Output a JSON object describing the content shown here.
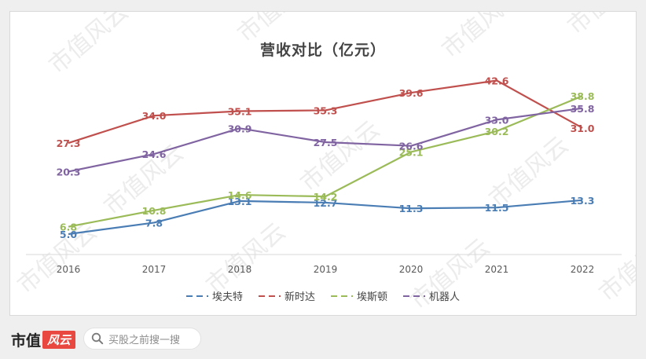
{
  "chart_data": {
    "type": "line",
    "title": "营收对比（亿元）",
    "categories": [
      "2016",
      "2017",
      "2018",
      "2019",
      "2020",
      "2021",
      "2022"
    ],
    "ylim": [
      0,
      45
    ],
    "grid": false,
    "legend": "bottom",
    "series": [
      {
        "name": "埃夫特",
        "color": "#4a7db4",
        "values": [
          5.0,
          7.8,
          13.1,
          12.7,
          11.3,
          11.5,
          13.3
        ],
        "labels": [
          "5.0",
          "7.8",
          "13.1",
          "12.7",
          "11.3",
          "11.5",
          "13.3"
        ]
      },
      {
        "name": "新时达",
        "color": "#c0504d",
        "values": [
          27.3,
          34.0,
          35.1,
          35.3,
          39.6,
          42.6,
          31.0
        ],
        "labels": [
          "27.3",
          "34.0",
          "35.1",
          "35.3",
          "39.6",
          "42.6",
          "31.0"
        ]
      },
      {
        "name": "埃斯顿",
        "color": "#9bbb59",
        "values": [
          6.8,
          10.8,
          14.6,
          14.2,
          25.1,
          30.2,
          38.8
        ],
        "labels": [
          "6.8",
          "10.8",
          "14.6",
          "14.2",
          "25.1",
          "30.2",
          "38.8"
        ]
      },
      {
        "name": "机器人",
        "color": "#8064a2",
        "values": [
          20.3,
          24.6,
          30.9,
          27.5,
          26.6,
          33.0,
          35.8
        ],
        "labels": [
          "20.3",
          "24.6",
          "30.9",
          "27.5",
          "26.6",
          "33.0",
          "35.8"
        ]
      }
    ]
  },
  "footer": {
    "brand": "市值",
    "brand_badge": "风云",
    "search_placeholder": "买股之前搜一搜"
  },
  "watermark": "市值风云"
}
